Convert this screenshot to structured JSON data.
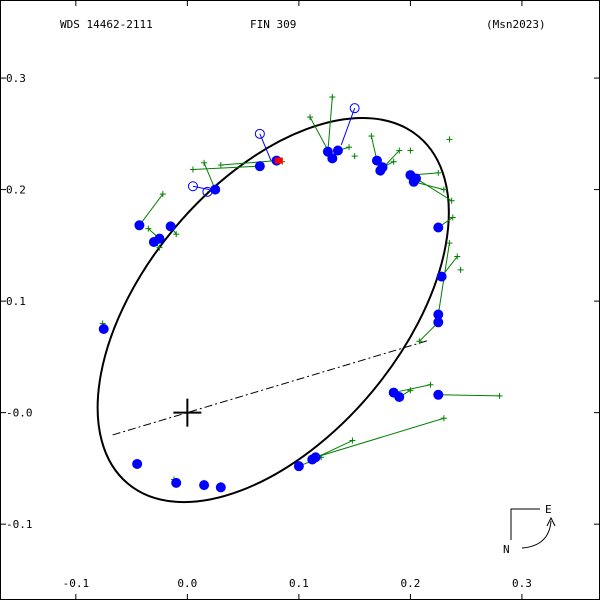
{
  "header": {
    "left": "WDS 14462-2111",
    "center": "FIN 309",
    "right": "(Msn2023)"
  },
  "compass": {
    "east": "E",
    "north": "N"
  },
  "colors": {
    "orbit": "#000000",
    "measure": "#0000ff",
    "residual": "#008000",
    "highlight": "#ff0000"
  },
  "chart_data": {
    "type": "scatter",
    "xlim": [
      -0.168,
      0.37
    ],
    "ylim": [
      0.37,
      -0.168
    ],
    "x_ticks": [
      {
        "v": -0.1,
        "label": "-0.1"
      },
      {
        "v": 0.0,
        "label": "0.0"
      },
      {
        "v": 0.1,
        "label": "0.1"
      },
      {
        "v": 0.2,
        "label": "0.2"
      },
      {
        "v": 0.3,
        "label": "0.3"
      }
    ],
    "y_ticks": [
      {
        "v": 0.3,
        "label": "0.3"
      },
      {
        "v": 0.2,
        "label": "0.2"
      },
      {
        "v": 0.1,
        "label": "0.1"
      },
      {
        "v": 0.0,
        "label": "-0.0"
      },
      {
        "v": -0.1,
        "label": "-0.1"
      }
    ],
    "grid": false,
    "primary": [
      0,
      0
    ],
    "line_of_nodes": [
      [
        -0.067,
        -0.02
      ],
      [
        0.217,
        0.065
      ]
    ],
    "orbit": {
      "center": [
        0.077,
        0.092
      ],
      "a": 0.203,
      "b": 0.115,
      "rotation_deg": -50
    },
    "observations": [
      [
        -0.043,
        0.168,
        -0.022,
        0.196
      ],
      [
        -0.03,
        0.153,
        -0.025,
        0.148
      ],
      [
        -0.025,
        0.156,
        -0.035,
        0.165
      ],
      [
        -0.015,
        0.167,
        -0.01,
        0.16
      ],
      [
        0.025,
        0.2,
        0.015,
        0.224
      ],
      [
        0.065,
        0.221,
        0.005,
        0.218
      ],
      [
        0.08,
        0.226,
        0.03,
        0.222
      ],
      [
        0.126,
        0.234,
        0.13,
        0.283
      ],
      [
        0.13,
        0.228,
        0.11,
        0.265
      ],
      [
        0.135,
        0.235,
        0.145,
        0.238
      ],
      [
        0.17,
        0.226,
        0.165,
        0.248
      ],
      [
        0.175,
        0.22,
        0.185,
        0.225
      ],
      [
        0.173,
        0.217,
        0.19,
        0.235
      ],
      [
        0.2,
        0.213,
        0.225,
        0.215
      ],
      [
        0.203,
        0.207,
        0.23,
        0.2
      ],
      [
        0.205,
        0.21,
        0.237,
        0.19
      ],
      [
        0.225,
        0.166,
        0.238,
        0.175
      ],
      [
        0.228,
        0.122,
        0.242,
        0.14
      ],
      [
        0.225,
        0.088,
        0.235,
        0.152
      ],
      [
        0.225,
        0.081,
        0.208,
        0.064
      ],
      [
        0.185,
        0.018,
        0.218,
        0.025
      ],
      [
        0.19,
        0.014,
        0.2,
        0.02
      ],
      [
        0.225,
        0.016,
        0.28,
        0.015
      ],
      [
        0.115,
        -0.04,
        0.23,
        -0.005
      ],
      [
        0.112,
        -0.042,
        0.148,
        -0.025
      ],
      [
        0.1,
        -0.048,
        0.12,
        -0.04
      ],
      [
        0.03,
        -0.067,
        0.03,
        -0.065
      ],
      [
        0.015,
        -0.065,
        0.015,
        -0.063
      ],
      [
        -0.01,
        -0.063,
        -0.012,
        -0.06
      ],
      [
        -0.045,
        -0.046,
        -0.045,
        -0.045
      ],
      [
        -0.075,
        0.075,
        -0.076,
        0.08
      ]
    ],
    "open_points": [
      [
        0.15,
        0.273,
        0.138,
        0.24
      ],
      [
        0.065,
        0.25,
        0.075,
        0.226
      ],
      [
        0.005,
        0.203,
        0.02,
        0.2
      ],
      [
        0.018,
        0.198,
        0.024,
        0.2
      ]
    ],
    "extra_residual_ends": [
      [
        0.235,
        0.245
      ],
      [
        0.2,
        0.235
      ],
      [
        0.15,
        0.23
      ],
      [
        0.245,
        0.128
      ],
      [
        0.085,
        0.225
      ]
    ],
    "highlight_point": [
      0.082,
      0.226
    ]
  }
}
